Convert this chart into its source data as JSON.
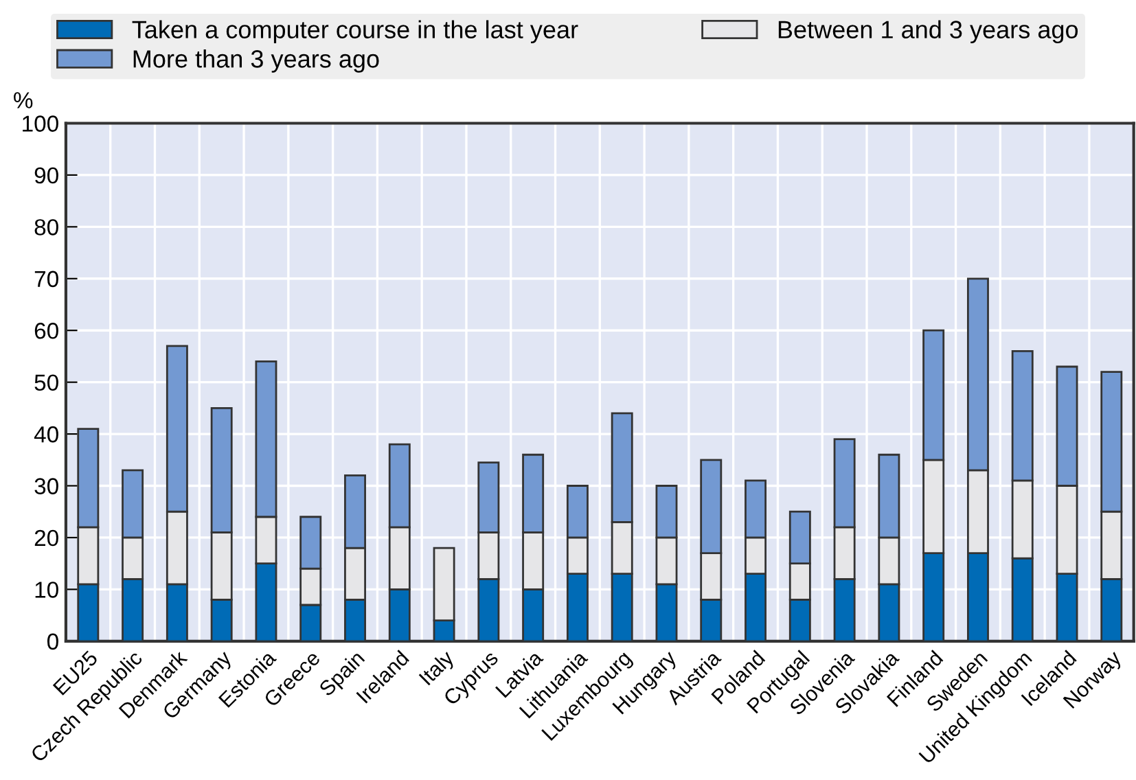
{
  "chart_data": {
    "type": "bar",
    "stacked": true,
    "ylabel": "%",
    "categories": [
      "EU25",
      "Czech Republic",
      "Denmark",
      "Germany",
      "Estonia",
      "Greece",
      "Spain",
      "Ireland",
      "Italy",
      "Cyprus",
      "Latvia",
      "Lithuania",
      "Luxembourg",
      "Hungary",
      "Austria",
      "Poland",
      "Portugal",
      "Slovenia",
      "Slovakia",
      "Finland",
      "Sweden",
      "United Kingdom",
      "Iceland",
      "Norway"
    ],
    "series": [
      {
        "name": "Taken a computer course in the last year",
        "color": "#006bb6",
        "values": [
          11,
          12,
          11,
          8,
          15,
          7,
          8,
          10,
          4,
          12,
          10,
          13,
          13,
          11,
          8,
          13,
          8,
          12,
          11,
          17,
          17,
          16,
          13,
          12
        ]
      },
      {
        "name": "Between 1 and 3 years ago",
        "color": "#e6e6e8",
        "values": [
          11,
          8,
          14,
          13,
          9,
          7,
          10,
          12,
          14,
          9,
          11,
          7,
          10,
          9,
          9,
          7,
          7,
          10,
          9,
          18,
          16,
          15,
          17,
          13
        ]
      },
      {
        "name": "More than 3 years ago",
        "color": "#7399d2",
        "values": [
          19,
          13,
          32,
          24,
          30,
          10,
          14,
          16,
          null,
          13.5,
          15,
          10,
          21,
          10,
          18,
          11,
          10,
          17,
          16,
          25,
          37,
          25,
          23,
          27
        ]
      }
    ],
    "ylim": [
      0,
      100
    ],
    "yticks": [
      0,
      10,
      20,
      30,
      40,
      50,
      60,
      70,
      80,
      90,
      100
    ],
    "grid": true,
    "legend": "top"
  }
}
